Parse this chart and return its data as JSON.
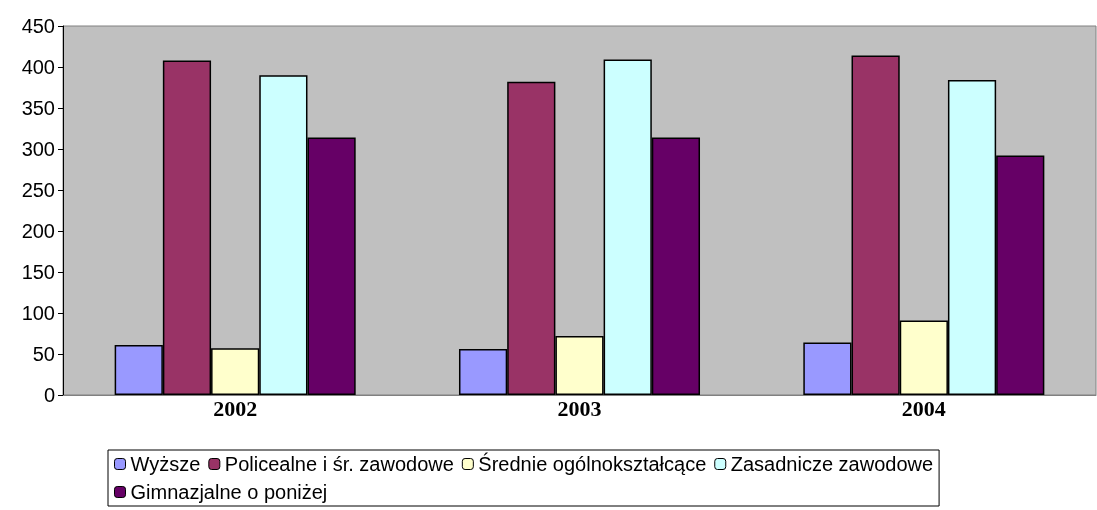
{
  "chart_data": {
    "type": "bar",
    "categories": [
      "2002",
      "2003",
      "2004"
    ],
    "series": [
      {
        "name": "Wyższe",
        "color": "#9999ff",
        "values": [
          61,
          56,
          64
        ]
      },
      {
        "name": "Policealne i śr. zawodowe",
        "color": "#993366",
        "values": [
          408,
          382,
          414
        ]
      },
      {
        "name": "Średnie ogólnokształcące",
        "color": "#ffffcc",
        "values": [
          57,
          72,
          91
        ]
      },
      {
        "name": "Zasadnicze zawodowe",
        "color": "#ccffff",
        "values": [
          390,
          409,
          384
        ]
      },
      {
        "name": "Gimnazjalne o poniżej",
        "color": "#660066",
        "values": [
          314,
          314,
          292
        ]
      }
    ],
    "ylim": [
      0,
      450
    ],
    "yticks": [
      0,
      50,
      100,
      150,
      200,
      250,
      300,
      350,
      400,
      450
    ],
    "grid": false,
    "legend": "bottom"
  }
}
